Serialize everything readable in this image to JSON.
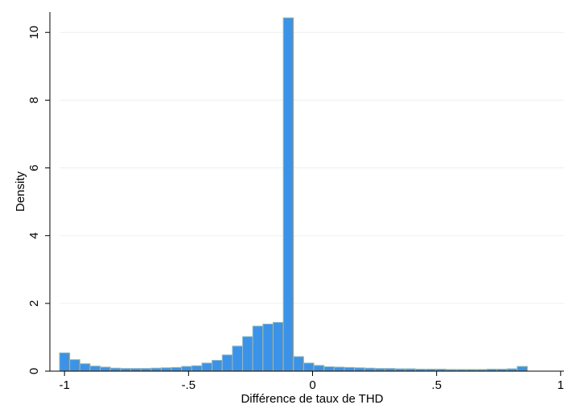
{
  "chart_data": {
    "type": "bar",
    "title": "",
    "xlabel": "Différence de taux de THD",
    "ylabel": "Density",
    "xlim": [
      -1.02,
      1.02
    ],
    "ylim": [
      0,
      10.6
    ],
    "x_ticks": [
      {
        "value": -1,
        "label": "-1"
      },
      {
        "value": -0.5,
        "label": "-.5"
      },
      {
        "value": 0,
        "label": "0"
      },
      {
        "value": 0.5,
        "label": ".5"
      },
      {
        "value": 1,
        "label": "1"
      }
    ],
    "y_ticks": [
      {
        "value": 0,
        "label": "0"
      },
      {
        "value": 2,
        "label": "2"
      },
      {
        "value": 4,
        "label": "4"
      },
      {
        "value": 6,
        "label": "6"
      },
      {
        "value": 8,
        "label": "8"
      },
      {
        "value": 10,
        "label": "10"
      }
    ],
    "grid": true,
    "bin_start": -1.02,
    "bin_width": 0.041,
    "values": [
      0.54,
      0.34,
      0.22,
      0.15,
      0.12,
      0.09,
      0.08,
      0.08,
      0.08,
      0.09,
      0.1,
      0.11,
      0.14,
      0.16,
      0.24,
      0.32,
      0.48,
      0.74,
      1.02,
      1.33,
      1.39,
      1.44,
      10.43,
      0.43,
      0.24,
      0.17,
      0.13,
      0.12,
      0.11,
      0.1,
      0.09,
      0.08,
      0.08,
      0.07,
      0.07,
      0.06,
      0.06,
      0.06,
      0.05,
      0.05,
      0.05,
      0.05,
      0.06,
      0.06,
      0.07,
      0.14
    ],
    "colors": {
      "bar_fill": "#3a93e8",
      "bar_edge": "#b8b48a",
      "grid": "#eaf0f3"
    }
  }
}
